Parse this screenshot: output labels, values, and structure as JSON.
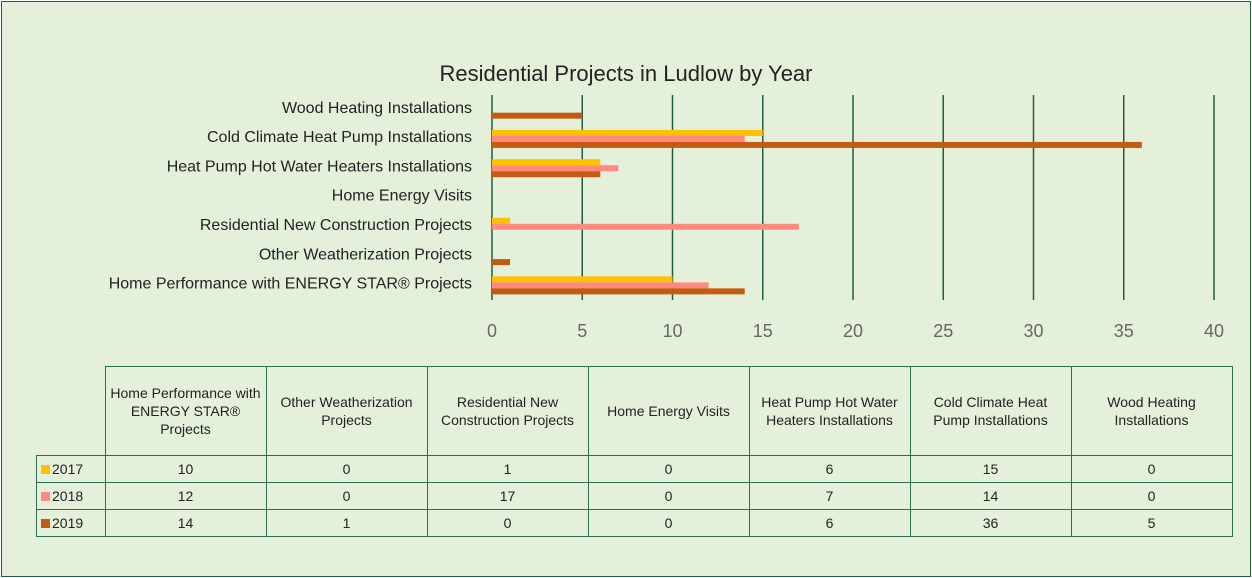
{
  "chart_data": {
    "type": "bar",
    "orientation": "horizontal",
    "title": "Residential Projects in Ludlow by Year",
    "categories": [
      "Home Performance with ENERGY STAR® Projects",
      "Other Weatherization Projects",
      "Residential New Construction Projects",
      "Home Energy Visits",
      "Heat Pump Hot Water Heaters Installations",
      "Cold Climate Heat Pump Installations",
      "Wood Heating Installations"
    ],
    "series": [
      {
        "name": "2017",
        "color": "#ffc000",
        "values": [
          10,
          0,
          1,
          0,
          6,
          15,
          0
        ]
      },
      {
        "name": "2018",
        "color": "#ff8b80",
        "values": [
          12,
          0,
          17,
          0,
          7,
          14,
          0
        ]
      },
      {
        "name": "2019",
        "color": "#c55a11",
        "values": [
          14,
          1,
          0,
          0,
          6,
          36,
          5
        ]
      }
    ],
    "xlim": [
      0,
      40
    ],
    "xticks": [
      0,
      5,
      10,
      15,
      20,
      25,
      30,
      35,
      40
    ],
    "grid": true,
    "data_table": true
  }
}
